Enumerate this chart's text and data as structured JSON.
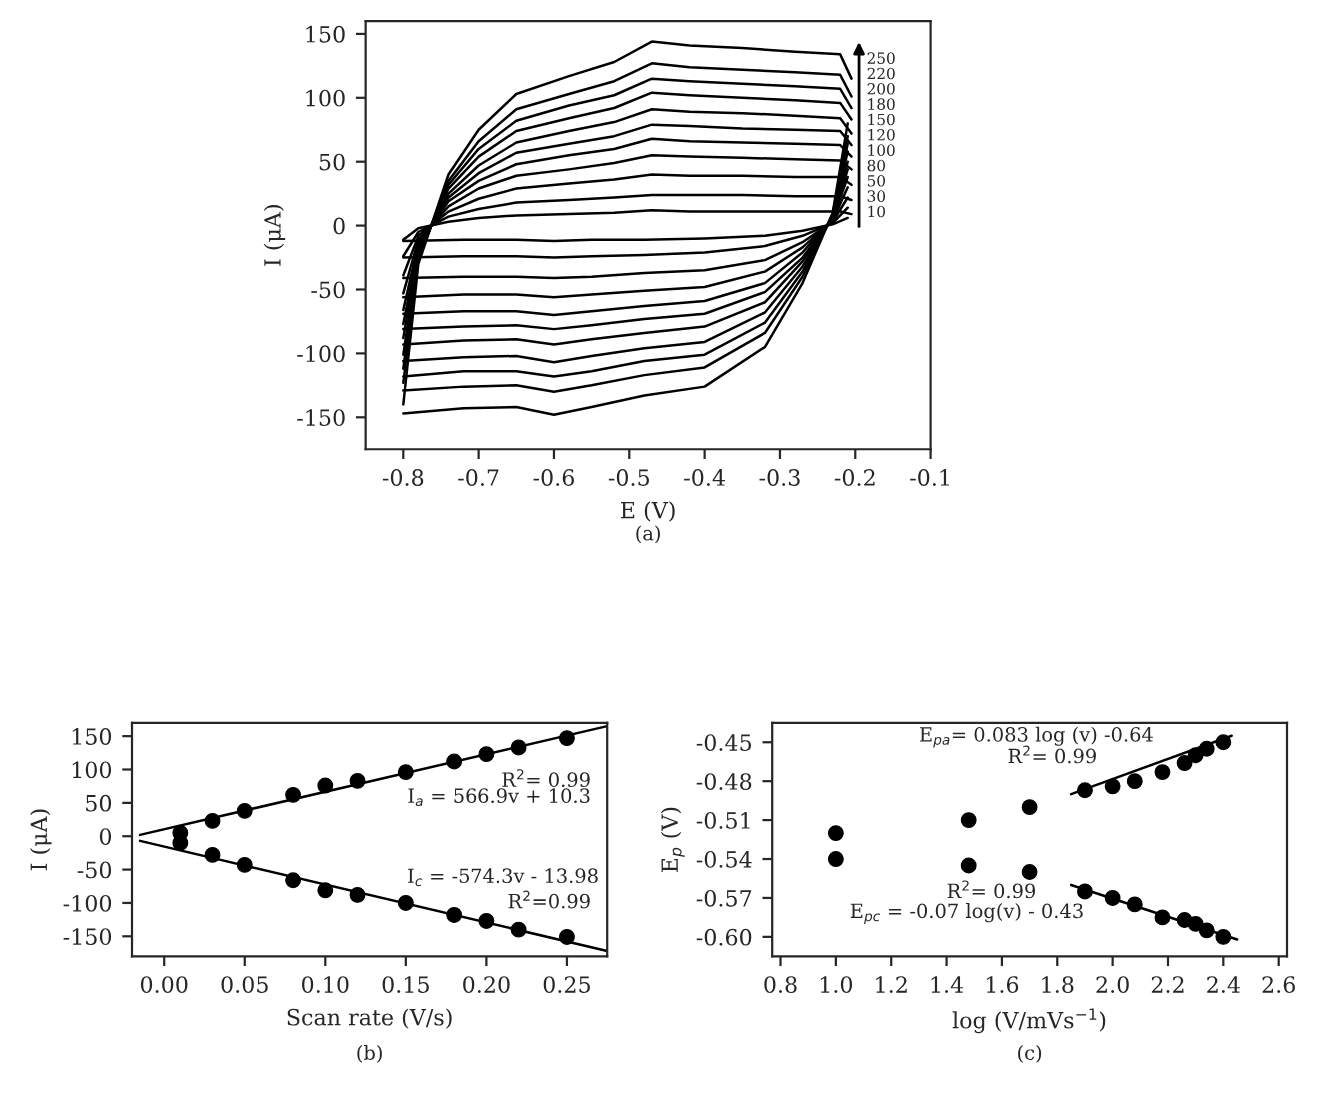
{
  "chart_data": [
    {
      "type": "line",
      "xlabel": "E (V)",
      "ylabel": "I (μA)",
      "xlim": [
        -0.85,
        -0.1
      ],
      "xticks": [
        -0.8,
        -0.7,
        -0.6,
        -0.5,
        -0.4,
        -0.3,
        -0.2,
        -0.1
      ],
      "ylim": [
        -175,
        160
      ],
      "yticks": [
        -150,
        -100,
        -50,
        0,
        50,
        100,
        150
      ],
      "marker": "none",
      "line_style": "solid",
      "annotations": [
        "250",
        "220",
        "200",
        "180",
        "150",
        "120",
        "100",
        "80",
        "50",
        "30",
        "10",
        "(a)"
      ],
      "series": [
        {
          "color": "#000000",
          "x": [
            -0.8,
            -0.78,
            -0.74,
            -0.7,
            -0.65,
            -0.58,
            -0.52,
            -0.47,
            -0.42,
            -0.35,
            -0.28,
            -0.22,
            -0.205
          ],
          "values": [
            -140,
            -30,
            40,
            75,
            103,
            117,
            128,
            144,
            141,
            139,
            136,
            134,
            115
          ]
        },
        {
          "color": "#000000",
          "x": [
            -0.8,
            -0.72,
            -0.65,
            -0.6,
            -0.55,
            -0.48,
            -0.4,
            -0.32,
            -0.27,
            -0.23,
            -0.21
          ],
          "values": [
            -147,
            -143,
            -142,
            -148,
            -142,
            -133,
            -126,
            -95,
            -45,
            10,
            80
          ]
        },
        {
          "color": "#000000",
          "x": [
            -0.8,
            -0.78,
            -0.74,
            -0.7,
            -0.65,
            -0.58,
            -0.52,
            -0.47,
            -0.42,
            -0.35,
            -0.28,
            -0.22,
            -0.205
          ],
          "values": [
            -123,
            -26,
            35,
            66,
            91,
            103,
            113,
            127,
            124,
            122,
            120,
            118,
            101
          ]
        },
        {
          "color": "#000000",
          "x": [
            -0.8,
            -0.72,
            -0.65,
            -0.6,
            -0.55,
            -0.48,
            -0.4,
            -0.32,
            -0.27,
            -0.23,
            -0.21
          ],
          "values": [
            -129,
            -126,
            -125,
            -130,
            -125,
            -117,
            -111,
            -84,
            -40,
            9,
            70
          ]
        },
        {
          "color": "#000000",
          "x": [
            -0.8,
            -0.78,
            -0.74,
            -0.7,
            -0.65,
            -0.58,
            -0.52,
            -0.47,
            -0.42,
            -0.35,
            -0.28,
            -0.22,
            -0.205
          ],
          "values": [
            -112,
            -24,
            32,
            60,
            82,
            94,
            102,
            115,
            113,
            111,
            109,
            107,
            92
          ]
        },
        {
          "color": "#000000",
          "x": [
            -0.8,
            -0.72,
            -0.65,
            -0.6,
            -0.55,
            -0.48,
            -0.4,
            -0.32,
            -0.27,
            -0.23,
            -0.21
          ],
          "values": [
            -118,
            -114,
            -114,
            -118,
            -114,
            -106,
            -101,
            -76,
            -36,
            8,
            64
          ]
        },
        {
          "color": "#000000",
          "x": [
            -0.8,
            -0.78,
            -0.74,
            -0.7,
            -0.65,
            -0.58,
            -0.52,
            -0.47,
            -0.42,
            -0.35,
            -0.28,
            -0.22,
            -0.205
          ],
          "values": [
            -101,
            -22,
            29,
            54,
            74,
            84,
            92,
            104,
            102,
            100,
            98,
            96,
            83
          ]
        },
        {
          "color": "#000000",
          "x": [
            -0.8,
            -0.72,
            -0.65,
            -0.6,
            -0.55,
            -0.48,
            -0.4,
            -0.32,
            -0.27,
            -0.23,
            -0.21
          ],
          "values": [
            -106,
            -103,
            -102,
            -107,
            -102,
            -96,
            -91,
            -68,
            -32,
            7,
            58
          ]
        },
        {
          "color": "#000000",
          "x": [
            -0.8,
            -0.78,
            -0.74,
            -0.7,
            -0.65,
            -0.58,
            -0.52,
            -0.47,
            -0.42,
            -0.35,
            -0.28,
            -0.22,
            -0.205
          ],
          "values": [
            -88,
            -19,
            25,
            47,
            65,
            74,
            81,
            91,
            89,
            88,
            86,
            84,
            72
          ]
        },
        {
          "color": "#000000",
          "x": [
            -0.8,
            -0.72,
            -0.65,
            -0.6,
            -0.55,
            -0.48,
            -0.4,
            -0.32,
            -0.27,
            -0.23,
            -0.21
          ],
          "values": [
            -93,
            -90,
            -89,
            -93,
            -89,
            -84,
            -79,
            -60,
            -28,
            6,
            50
          ]
        },
        {
          "color": "#000000",
          "x": [
            -0.8,
            -0.78,
            -0.74,
            -0.7,
            -0.65,
            -0.58,
            -0.52,
            -0.47,
            -0.42,
            -0.35,
            -0.28,
            -0.22,
            -0.205
          ],
          "values": [
            -77,
            -17,
            22,
            41,
            57,
            64,
            70,
            79,
            78,
            76,
            75,
            74,
            63
          ]
        },
        {
          "color": "#000000",
          "x": [
            -0.8,
            -0.72,
            -0.65,
            -0.6,
            -0.55,
            -0.48,
            -0.4,
            -0.32,
            -0.27,
            -0.23,
            -0.21
          ],
          "values": [
            -81,
            -79,
            -78,
            -81,
            -78,
            -73,
            -69,
            -52,
            -25,
            6,
            44
          ]
        },
        {
          "color": "#000000",
          "x": [
            -0.8,
            -0.78,
            -0.74,
            -0.7,
            -0.65,
            -0.58,
            -0.52,
            -0.47,
            -0.42,
            -0.35,
            -0.28,
            -0.22,
            -0.205
          ],
          "values": [
            -66,
            -14,
            19,
            35,
            48,
            55,
            60,
            68,
            66,
            65,
            64,
            63,
            54
          ]
        },
        {
          "color": "#000000",
          "x": [
            -0.8,
            -0.72,
            -0.65,
            -0.6,
            -0.55,
            -0.48,
            -0.4,
            -0.32,
            -0.27,
            -0.23,
            -0.21
          ],
          "values": [
            -69,
            -67,
            -67,
            -70,
            -67,
            -63,
            -59,
            -45,
            -21,
            5,
            38
          ]
        },
        {
          "color": "#000000",
          "x": [
            -0.8,
            -0.78,
            -0.74,
            -0.7,
            -0.65,
            -0.58,
            -0.52,
            -0.47,
            -0.42,
            -0.35,
            -0.28,
            -0.22,
            -0.205
          ],
          "values": [
            -53,
            -11,
            15,
            29,
            39,
            44,
            49,
            55,
            54,
            53,
            52,
            51,
            44
          ]
        },
        {
          "color": "#000000",
          "x": [
            -0.8,
            -0.72,
            -0.65,
            -0.6,
            -0.55,
            -0.48,
            -0.4,
            -0.32,
            -0.27,
            -0.23,
            -0.21
          ],
          "values": [
            -56,
            -54,
            -54,
            -56,
            -54,
            -51,
            -48,
            -36,
            -17,
            4,
            30
          ]
        },
        {
          "color": "#000000",
          "x": [
            -0.8,
            -0.78,
            -0.74,
            -0.7,
            -0.65,
            -0.58,
            -0.52,
            -0.47,
            -0.42,
            -0.35,
            -0.28,
            -0.22,
            -0.205
          ],
          "values": [
            -39,
            -8,
            11,
            21,
            29,
            33,
            36,
            40,
            39,
            39,
            38,
            38,
            32
          ]
        },
        {
          "color": "#000000",
          "x": [
            -0.8,
            -0.72,
            -0.65,
            -0.6,
            -0.55,
            -0.48,
            -0.4,
            -0.32,
            -0.27,
            -0.23,
            -0.21
          ],
          "values": [
            -41,
            -40,
            -40,
            -41,
            -40,
            -37,
            -35,
            -27,
            -13,
            3,
            22
          ]
        },
        {
          "color": "#000000",
          "x": [
            -0.8,
            -0.78,
            -0.74,
            -0.7,
            -0.65,
            -0.58,
            -0.52,
            -0.47,
            -0.42,
            -0.35,
            -0.28,
            -0.22,
            -0.205
          ],
          "values": [
            -24,
            -5,
            7,
            13,
            18,
            20,
            22,
            24,
            24,
            24,
            23,
            23,
            20
          ]
        },
        {
          "color": "#000000",
          "x": [
            -0.8,
            -0.72,
            -0.65,
            -0.6,
            -0.55,
            -0.48,
            -0.4,
            -0.32,
            -0.27,
            -0.23,
            -0.21
          ],
          "values": [
            -25,
            -24,
            -24,
            -25,
            -24,
            -23,
            -21,
            -16,
            -8,
            2,
            14
          ]
        },
        {
          "color": "#000000",
          "x": [
            -0.8,
            -0.78,
            -0.74,
            -0.7,
            -0.65,
            -0.58,
            -0.52,
            -0.47,
            -0.42,
            -0.35,
            -0.28,
            -0.22,
            -0.205
          ],
          "values": [
            -11,
            -2,
            3,
            6,
            8,
            9,
            10,
            12,
            11,
            11,
            11,
            11,
            9
          ]
        },
        {
          "color": "#000000",
          "x": [
            -0.8,
            -0.72,
            -0.65,
            -0.6,
            -0.55,
            -0.48,
            -0.4,
            -0.32,
            -0.27,
            -0.23,
            -0.21
          ],
          "values": [
            -12,
            -11,
            -11,
            -12,
            -11,
            -11,
            -10,
            -8,
            -4,
            1,
            6
          ]
        }
      ]
    },
    {
      "type": "scatter",
      "xlabel": "Scan rate (V/s)",
      "ylabel": "I (μA)",
      "xlim": [
        -0.02,
        0.275
      ],
      "xticks": [
        {
          "value": 0,
          "label": "0.00"
        },
        0.05,
        {
          "value": 0.1,
          "label": "0.10"
        },
        0.15,
        {
          "value": 0.2,
          "label": "0.20"
        },
        0.25
      ],
      "ylim": [
        -180,
        170
      ],
      "yticks": [
        -150,
        -100,
        -50,
        0,
        50,
        100,
        150
      ],
      "marker": "circle",
      "annotations": [
        "R$^{2}$= 0.99",
        "I$_{a}$ = 566.9v + 10.3",
        "I$_{c}$ = -574.3v - 13.98",
        "R$^{2}$=0.99",
        "(b)"
      ],
      "series": [
        {
          "color": "#000000",
          "x": [
            0.01,
            0.03,
            0.05,
            0.08,
            0.1,
            0.12,
            0.15,
            0.18,
            0.2,
            0.22,
            0.25
          ],
          "values": [
            5,
            23,
            38,
            62,
            76,
            83,
            96,
            112,
            123,
            133,
            147
          ]
        },
        {
          "color": "#000000",
          "x": [
            0.01,
            0.03,
            0.05,
            0.08,
            0.1,
            0.12,
            0.15,
            0.18,
            0.2,
            0.22,
            0.25
          ],
          "values": [
            -10,
            -28,
            -43,
            -66,
            -81,
            -88,
            -100,
            -118,
            -127,
            -140,
            -151
          ]
        },
        {
          "type": "line",
          "marker": "none",
          "color": "#000000",
          "x": [
            -0.015,
            0.275
          ],
          "values": [
            2,
            165
          ]
        },
        {
          "type": "line",
          "marker": "none",
          "color": "#000000",
          "x": [
            -0.015,
            0.275
          ],
          "values": [
            -7,
            -172
          ]
        }
      ]
    },
    {
      "type": "scatter",
      "xlabel": "log (V/mVs$^{−1}$)",
      "ylabel": "E$_{p}$ (V)",
      "xlim": [
        0.77,
        2.63
      ],
      "xticks": [
        0.8,
        {
          "value": 1.0,
          "label": "1.0"
        },
        1.2,
        1.4,
        1.6,
        1.8,
        {
          "value": 2.0,
          "label": "2.0"
        },
        2.2,
        2.4,
        2.6
      ],
      "ylim": [
        -0.615,
        -0.435
      ],
      "yticks": [
        {
          "value": -0.45,
          "label": "-0.45"
        },
        {
          "value": -0.48,
          "label": "-0.48"
        },
        {
          "value": -0.51,
          "label": "-0.51"
        },
        {
          "value": -0.54,
          "label": "-0.54"
        },
        {
          "value": -0.57,
          "label": "-0.57"
        },
        {
          "value": -0.6,
          "label": "-0.60"
        }
      ],
      "marker": "circle",
      "annotations": [
        "E$_{pa}$= 0.083 log (v) -0.64",
        "R$^{2}$= 0.99",
        "R$^{2}$= 0.99",
        "E$_{pc}$ = -0.07 log(v) - 0.43",
        "(c)"
      ],
      "series": [
        {
          "color": "#000000",
          "x": [
            1.0,
            1.48,
            1.7,
            1.9,
            2.0,
            2.08,
            2.18,
            2.26,
            2.3,
            2.34,
            2.4
          ],
          "values": [
            -0.52,
            -0.51,
            -0.5,
            -0.487,
            -0.484,
            -0.48,
            -0.473,
            -0.466,
            -0.46,
            -0.455,
            -0.45
          ]
        },
        {
          "color": "#000000",
          "x": [
            1.0,
            1.48,
            1.7,
            1.9,
            2.0,
            2.08,
            2.18,
            2.26,
            2.3,
            2.34,
            2.4
          ],
          "values": [
            -0.54,
            -0.545,
            -0.55,
            -0.565,
            -0.57,
            -0.575,
            -0.585,
            -0.587,
            -0.59,
            -0.595,
            -0.6
          ]
        },
        {
          "type": "line",
          "marker": "none",
          "color": "#000000",
          "x": [
            1.85,
            2.43
          ],
          "values": [
            -0.49,
            -0.445
          ]
        },
        {
          "type": "line",
          "marker": "none",
          "color": "#000000",
          "x": [
            1.85,
            2.45
          ],
          "values": [
            -0.56,
            -0.602
          ]
        }
      ]
    }
  ]
}
